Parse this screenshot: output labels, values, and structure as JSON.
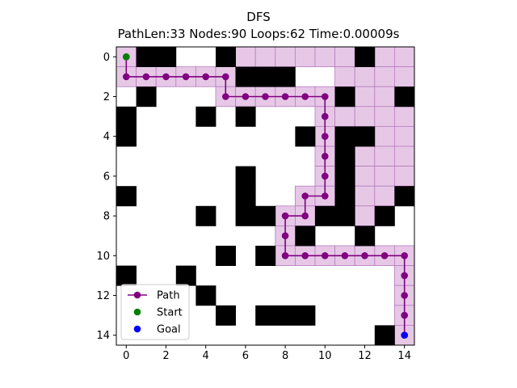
{
  "chart_data": {
    "type": "grid-path",
    "title": "DFS",
    "subtitle": "PathLen:33 Nodes:90 Loops:62 Time:0.00009s",
    "grid_size": 15,
    "xlim": [
      -0.5,
      14.5
    ],
    "ylim": [
      14.5,
      -0.5
    ],
    "xticks": [
      0,
      2,
      4,
      6,
      8,
      10,
      12,
      14
    ],
    "yticks": [
      0,
      2,
      4,
      6,
      8,
      10,
      12,
      14
    ],
    "grid": false,
    "colors": {
      "wall": "#000000",
      "visited": "#e6c8e6",
      "visited_edge": "#b87cc0",
      "path": "#800080",
      "start": "#008000",
      "goal": "#0000ff"
    },
    "walls": [
      [
        1,
        0
      ],
      [
        2,
        0
      ],
      [
        5,
        0
      ],
      [
        12,
        0
      ],
      [
        6,
        1
      ],
      [
        7,
        1
      ],
      [
        8,
        1
      ],
      [
        1,
        2
      ],
      [
        11,
        2
      ],
      [
        14,
        2
      ],
      [
        0,
        3
      ],
      [
        4,
        3
      ],
      [
        6,
        3
      ],
      [
        0,
        4
      ],
      [
        9,
        4
      ],
      [
        11,
        4
      ],
      [
        12,
        4
      ],
      [
        11,
        5
      ],
      [
        6,
        6
      ],
      [
        11,
        6
      ],
      [
        0,
        7
      ],
      [
        6,
        7
      ],
      [
        11,
        7
      ],
      [
        14,
        7
      ],
      [
        4,
        8
      ],
      [
        6,
        8
      ],
      [
        7,
        8
      ],
      [
        10,
        8
      ],
      [
        11,
        8
      ],
      [
        13,
        8
      ],
      [
        9,
        9
      ],
      [
        12,
        9
      ],
      [
        5,
        10
      ],
      [
        7,
        10
      ],
      [
        0,
        11
      ],
      [
        3,
        11
      ],
      [
        4,
        12
      ],
      [
        5,
        13
      ],
      [
        7,
        13
      ],
      [
        8,
        13
      ],
      [
        9,
        13
      ],
      [
        13,
        14
      ]
    ],
    "visited": [
      [
        0,
        0
      ],
      [
        6,
        0
      ],
      [
        7,
        0
      ],
      [
        8,
        0
      ],
      [
        9,
        0
      ],
      [
        10,
        0
      ],
      [
        11,
        0
      ],
      [
        13,
        0
      ],
      [
        14,
        0
      ],
      [
        0,
        1
      ],
      [
        1,
        1
      ],
      [
        2,
        1
      ],
      [
        3,
        1
      ],
      [
        4,
        1
      ],
      [
        5,
        1
      ],
      [
        11,
        1
      ],
      [
        12,
        1
      ],
      [
        13,
        1
      ],
      [
        14,
        1
      ],
      [
        5,
        2
      ],
      [
        6,
        2
      ],
      [
        7,
        2
      ],
      [
        8,
        2
      ],
      [
        9,
        2
      ],
      [
        10,
        2
      ],
      [
        12,
        2
      ],
      [
        13,
        2
      ],
      [
        10,
        3
      ],
      [
        11,
        3
      ],
      [
        12,
        3
      ],
      [
        13,
        3
      ],
      [
        14,
        3
      ],
      [
        10,
        4
      ],
      [
        13,
        4
      ],
      [
        14,
        4
      ],
      [
        10,
        5
      ],
      [
        12,
        5
      ],
      [
        13,
        5
      ],
      [
        14,
        5
      ],
      [
        10,
        6
      ],
      [
        12,
        6
      ],
      [
        13,
        6
      ],
      [
        14,
        6
      ],
      [
        9,
        7
      ],
      [
        10,
        7
      ],
      [
        12,
        7
      ],
      [
        13,
        7
      ],
      [
        8,
        8
      ],
      [
        9,
        8
      ],
      [
        12,
        8
      ],
      [
        8,
        9
      ],
      [
        8,
        10
      ],
      [
        9,
        10
      ],
      [
        10,
        10
      ],
      [
        11,
        10
      ],
      [
        12,
        10
      ],
      [
        13,
        10
      ],
      [
        14,
        10
      ],
      [
        14,
        11
      ],
      [
        14,
        12
      ],
      [
        14,
        13
      ],
      [
        14,
        14
      ]
    ],
    "series": [
      {
        "name": "Path",
        "points": [
          [
            0,
            0
          ],
          [
            0,
            1
          ],
          [
            1,
            1
          ],
          [
            2,
            1
          ],
          [
            3,
            1
          ],
          [
            4,
            1
          ],
          [
            5,
            1
          ],
          [
            5,
            2
          ],
          [
            6,
            2
          ],
          [
            7,
            2
          ],
          [
            8,
            2
          ],
          [
            9,
            2
          ],
          [
            10,
            2
          ],
          [
            10,
            3
          ],
          [
            10,
            4
          ],
          [
            10,
            5
          ],
          [
            10,
            6
          ],
          [
            10,
            7
          ],
          [
            9,
            7
          ],
          [
            9,
            8
          ],
          [
            8,
            8
          ],
          [
            8,
            9
          ],
          [
            8,
            10
          ],
          [
            9,
            10
          ],
          [
            10,
            10
          ],
          [
            11,
            10
          ],
          [
            12,
            10
          ],
          [
            13,
            10
          ],
          [
            14,
            10
          ],
          [
            14,
            11
          ],
          [
            14,
            12
          ],
          [
            14,
            13
          ],
          [
            14,
            14
          ]
        ]
      },
      {
        "name": "Start",
        "points": [
          [
            0,
            0
          ]
        ]
      },
      {
        "name": "Goal",
        "points": [
          [
            14,
            14
          ]
        ]
      }
    ],
    "legend": {
      "placement": "lower-left",
      "entries": [
        "Path",
        "Start",
        "Goal"
      ]
    }
  }
}
